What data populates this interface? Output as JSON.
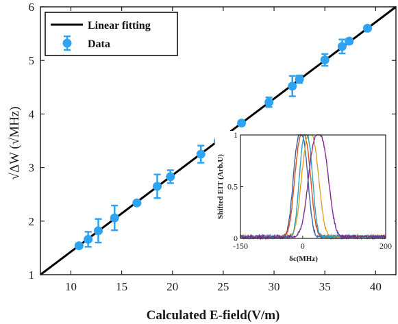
{
  "chart_data": [
    {
      "type": "scatter",
      "xlabel": "Calculated E-field(V/m)",
      "ylabel": "√ΔW (√MHz)",
      "xlim": [
        7,
        42
      ],
      "ylim": [
        1,
        6
      ],
      "xticks": [
        10,
        15,
        20,
        25,
        30,
        35,
        40
      ],
      "yticks": [
        1,
        2,
        3,
        4,
        5,
        6
      ],
      "legend": {
        "placement": "top-left",
        "entries": [
          "Linear fitting",
          "Data"
        ]
      },
      "colors": {
        "data": "#2ea3f2",
        "fit": "#000000"
      },
      "series": [
        {
          "name": "Data",
          "x": [
            10.8,
            11.7,
            12.7,
            14.3,
            16.5,
            18.5,
            19.8,
            22.8,
            24.5,
            26.8,
            29.5,
            31.8,
            32.5,
            35.0,
            36.7,
            37.4,
            39.2
          ],
          "y": [
            1.54,
            1.66,
            1.82,
            2.06,
            2.34,
            2.65,
            2.83,
            3.25,
            3.49,
            3.83,
            4.22,
            4.52,
            4.65,
            5.01,
            5.26,
            5.36,
            5.6
          ],
          "err": [
            0.04,
            0.14,
            0.22,
            0.23,
            0.04,
            0.22,
            0.12,
            0.16,
            0.03,
            0.04,
            0.09,
            0.19,
            0.07,
            0.11,
            0.13,
            0.05,
            0.04
          ]
        },
        {
          "name": "Linear fitting",
          "x": [
            7,
            42
          ],
          "y": [
            1.0,
            6.0
          ]
        }
      ]
    },
    {
      "type": "line",
      "xlabel": "δc(MHz)",
      "ylabel": "Shifted EIT (Arb.U)",
      "xlim": [
        -150,
        200
      ],
      "ylim": [
        0,
        1
      ],
      "xticks": [
        -150,
        0,
        200
      ],
      "yticks": [
        0,
        0.5,
        1
      ],
      "curves": [
        {
          "color": "#3a63a8",
          "center": -5,
          "width": 22
        },
        {
          "color": "#d94f1e",
          "center": 0,
          "width": 24
        },
        {
          "color": "#e0a020",
          "center": 18,
          "width": 26
        },
        {
          "color": "#2aa0c0",
          "center": 8,
          "width": 20
        },
        {
          "color": "#7b2c8f",
          "center": 38,
          "width": 30
        }
      ]
    }
  ]
}
